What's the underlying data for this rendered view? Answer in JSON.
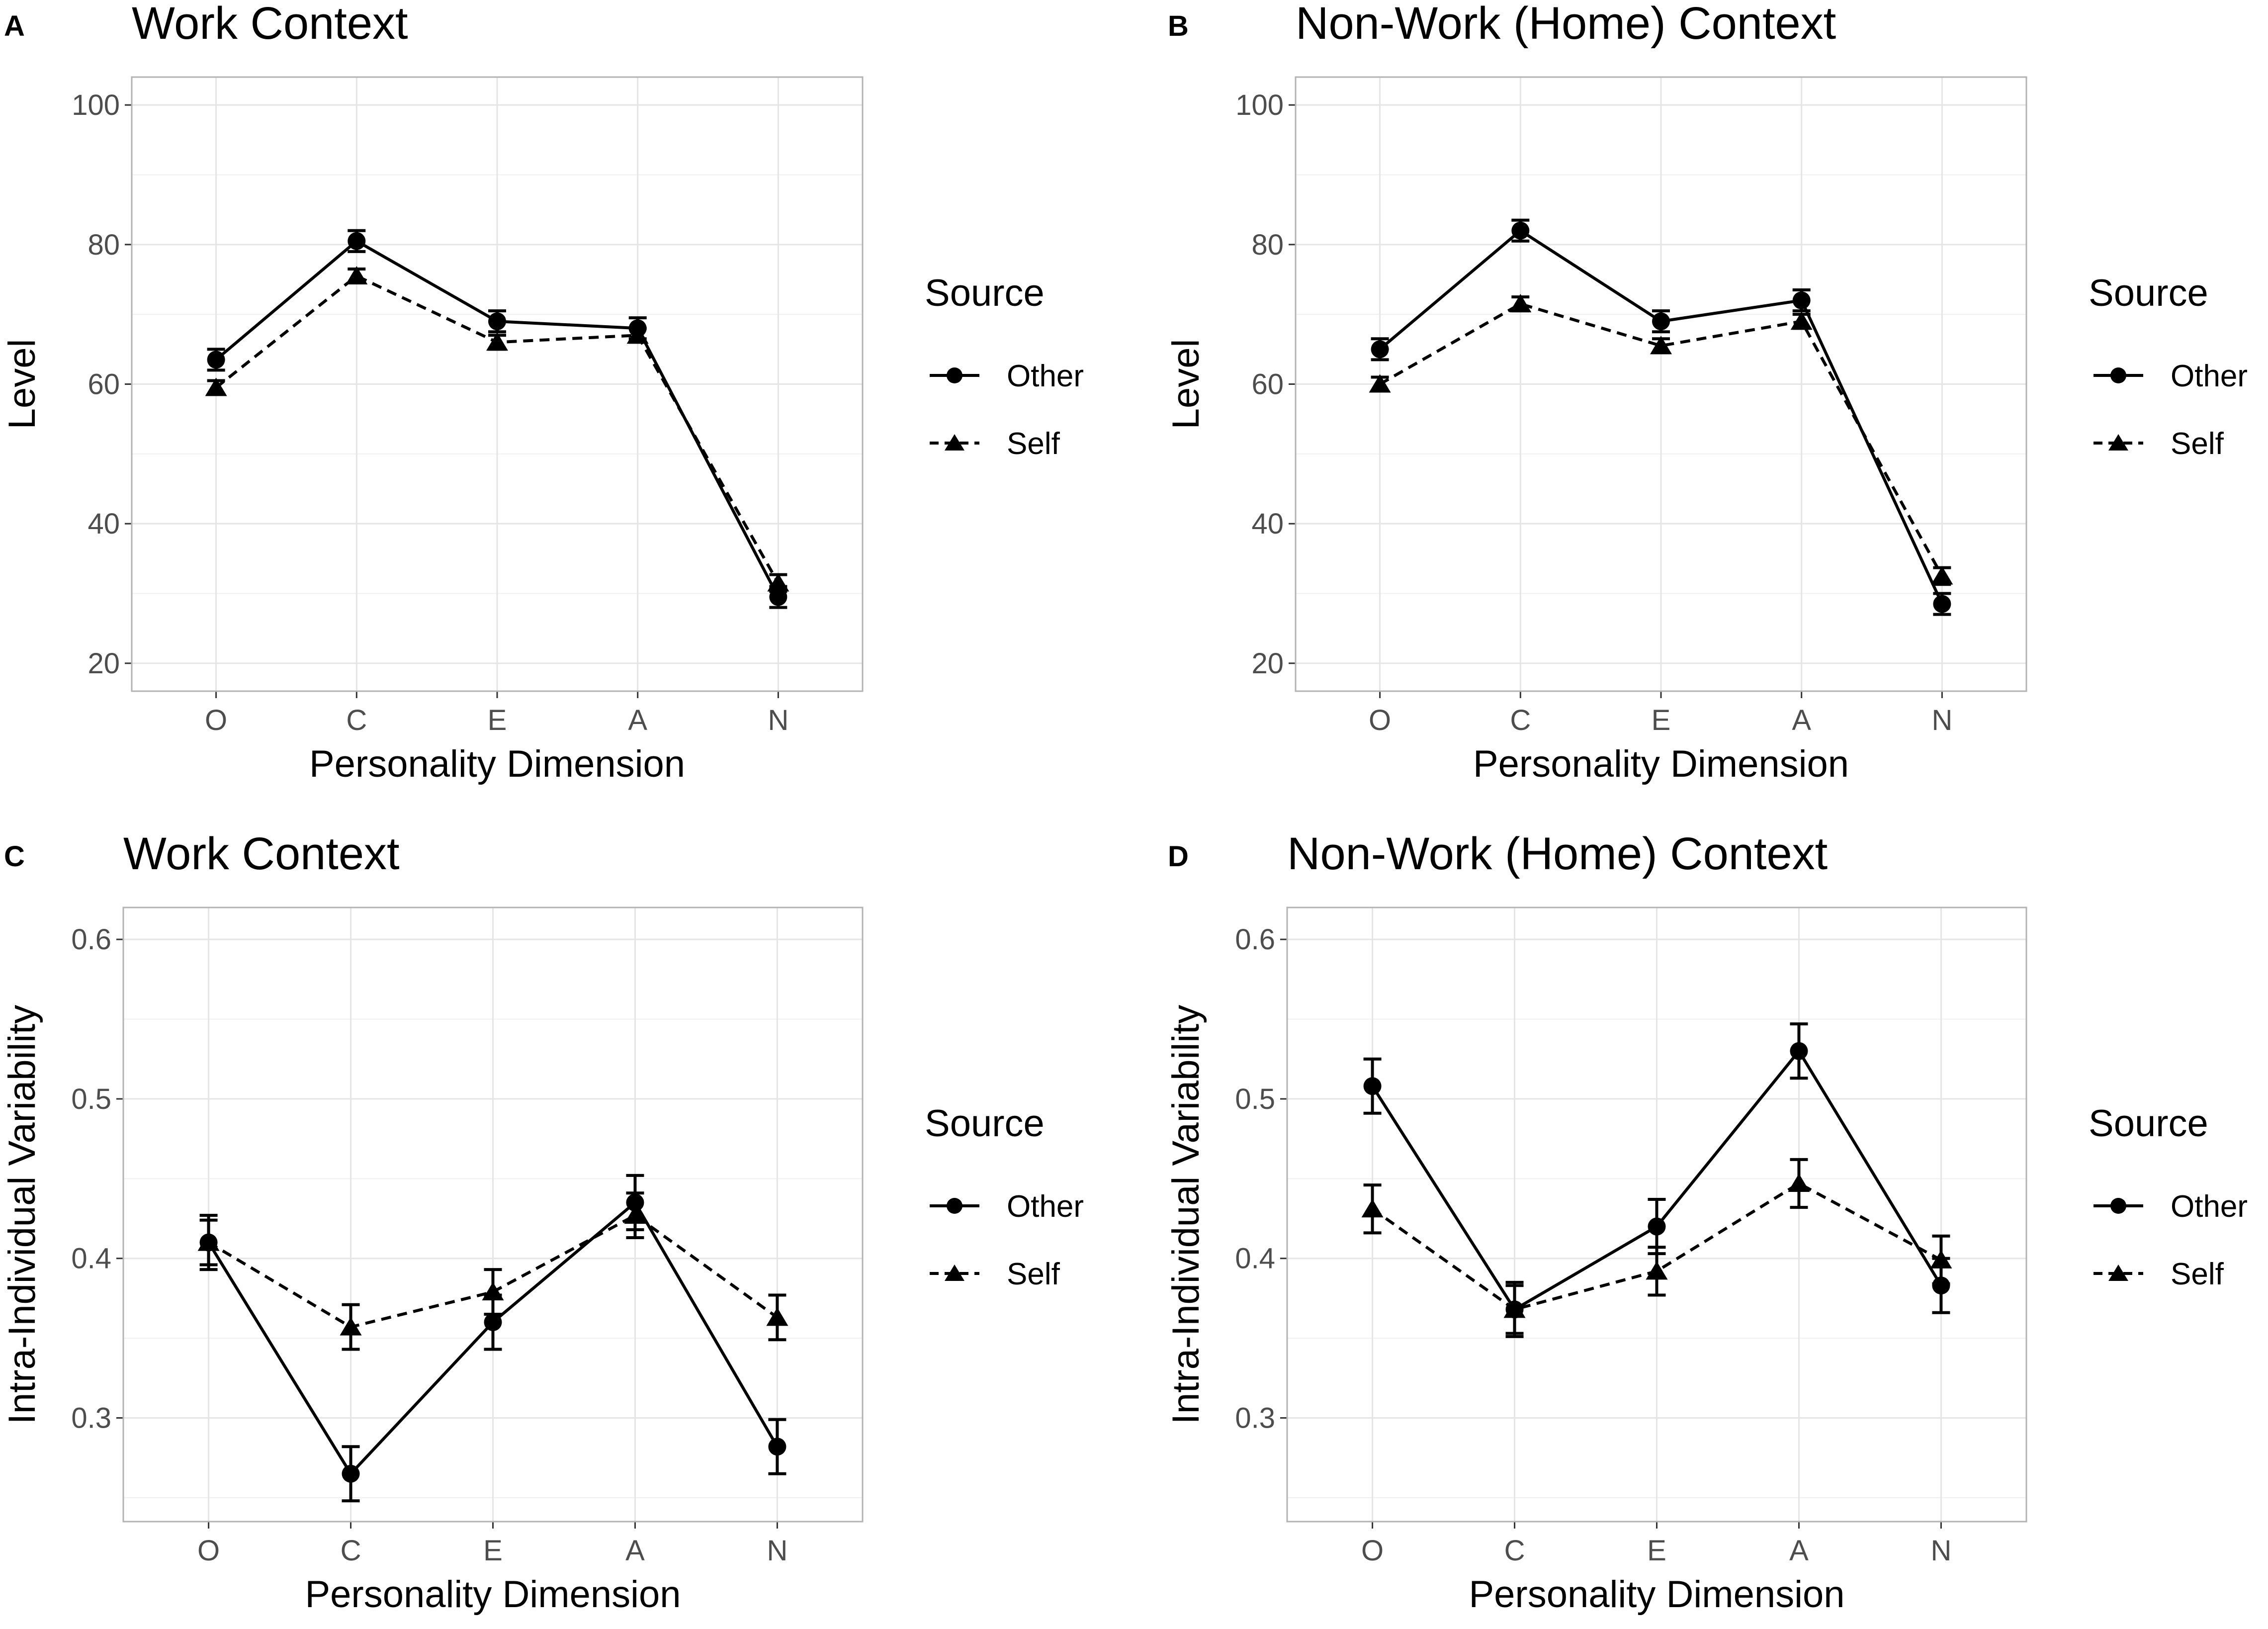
{
  "figure": {
    "panels": [
      {
        "letter": "A",
        "title": "Work Context"
      },
      {
        "letter": "B",
        "title": "Non-Work (Home) Context"
      },
      {
        "letter": "C",
        "title": "Work Context"
      },
      {
        "letter": "D",
        "title": "Non-Work (Home) Context"
      }
    ]
  },
  "colors": {
    "ink": "#000000",
    "grid": "#e5e5e5",
    "panel_border": "#b3b3b3",
    "tick_text": "#4d4d4d"
  },
  "chart_data": [
    {
      "type": "line",
      "panel": "A",
      "title": "Work Context",
      "xlabel": "Personality Dimension",
      "ylabel": "Level",
      "categories": [
        "O",
        "C",
        "E",
        "A",
        "N"
      ],
      "ylim": [
        16,
        104
      ],
      "yticks": [
        20,
        40,
        60,
        80,
        100
      ],
      "ytick_labels": [
        "20",
        "40",
        "60",
        "80",
        "100"
      ],
      "legend": {
        "title": "Source",
        "position": "right"
      },
      "series": [
        {
          "name": "Other",
          "marker": "circle",
          "line": "solid",
          "values": [
            63.5,
            80.5,
            69,
            68,
            29.5
          ],
          "errors": [
            1.5,
            1.5,
            1.5,
            1.5,
            1.5
          ]
        },
        {
          "name": "Self",
          "marker": "triangle",
          "line": "dashed",
          "values": [
            59.5,
            75.5,
            66,
            67,
            31.5
          ],
          "errors": [
            1,
            1,
            1,
            1,
            1.2
          ]
        }
      ]
    },
    {
      "type": "line",
      "panel": "B",
      "title": "Non-Work (Home) Context",
      "xlabel": "Personality Dimension",
      "ylabel": "Level",
      "categories": [
        "O",
        "C",
        "E",
        "A",
        "N"
      ],
      "ylim": [
        16,
        104
      ],
      "yticks": [
        20,
        40,
        60,
        80,
        100
      ],
      "ytick_labels": [
        "20",
        "40",
        "60",
        "80",
        "100"
      ],
      "legend": {
        "title": "Source",
        "position": "right"
      },
      "series": [
        {
          "name": "Other",
          "marker": "circle",
          "line": "solid",
          "values": [
            65,
            82,
            69,
            72,
            28.5
          ],
          "errors": [
            1.5,
            1.5,
            1.5,
            1.5,
            1.5
          ]
        },
        {
          "name": "Self",
          "marker": "triangle",
          "line": "dashed",
          "values": [
            60,
            71.5,
            65.5,
            69,
            32.5
          ],
          "errors": [
            1,
            1,
            1,
            1,
            1.2
          ]
        }
      ]
    },
    {
      "type": "line",
      "panel": "C",
      "title": "Work Context",
      "xlabel": "Personality Dimension",
      "ylabel": "Intra-Individual Variability",
      "categories": [
        "O",
        "C",
        "E",
        "A",
        "N"
      ],
      "ylim": [
        0.235,
        0.62
      ],
      "yticks": [
        0.3,
        0.4,
        0.5,
        0.6
      ],
      "ytick_labels": [
        "0.3",
        "0.4",
        "0.5",
        "0.6"
      ],
      "legend": {
        "title": "Source",
        "position": "right"
      },
      "series": [
        {
          "name": "Other",
          "marker": "circle",
          "line": "solid",
          "values": [
            0.41,
            0.265,
            0.36,
            0.435,
            0.282
          ],
          "errors": [
            0.017,
            0.017,
            0.017,
            0.017,
            0.017
          ]
        },
        {
          "name": "Self",
          "marker": "triangle",
          "line": "dashed",
          "values": [
            0.41,
            0.357,
            0.379,
            0.427,
            0.363
          ],
          "errors": [
            0.014,
            0.014,
            0.014,
            0.014,
            0.014
          ]
        }
      ]
    },
    {
      "type": "line",
      "panel": "D",
      "title": "Non-Work (Home) Context",
      "xlabel": "Personality Dimension",
      "ylabel": "Intra-Individual Variability",
      "categories": [
        "O",
        "C",
        "E",
        "A",
        "N"
      ],
      "ylim": [
        0.235,
        0.62
      ],
      "yticks": [
        0.3,
        0.4,
        0.5,
        0.6
      ],
      "ytick_labels": [
        "0.3",
        "0.4",
        "0.5",
        "0.6"
      ],
      "legend": {
        "title": "Source",
        "position": "right"
      },
      "series": [
        {
          "name": "Other",
          "marker": "circle",
          "line": "solid",
          "values": [
            0.508,
            0.368,
            0.42,
            0.53,
            0.383
          ],
          "errors": [
            0.017,
            0.017,
            0.017,
            0.017,
            0.017
          ]
        },
        {
          "name": "Self",
          "marker": "triangle",
          "line": "dashed",
          "values": [
            0.431,
            0.368,
            0.392,
            0.447,
            0.399
          ],
          "errors": [
            0.015,
            0.015,
            0.015,
            0.015,
            0.015
          ]
        }
      ]
    }
  ]
}
